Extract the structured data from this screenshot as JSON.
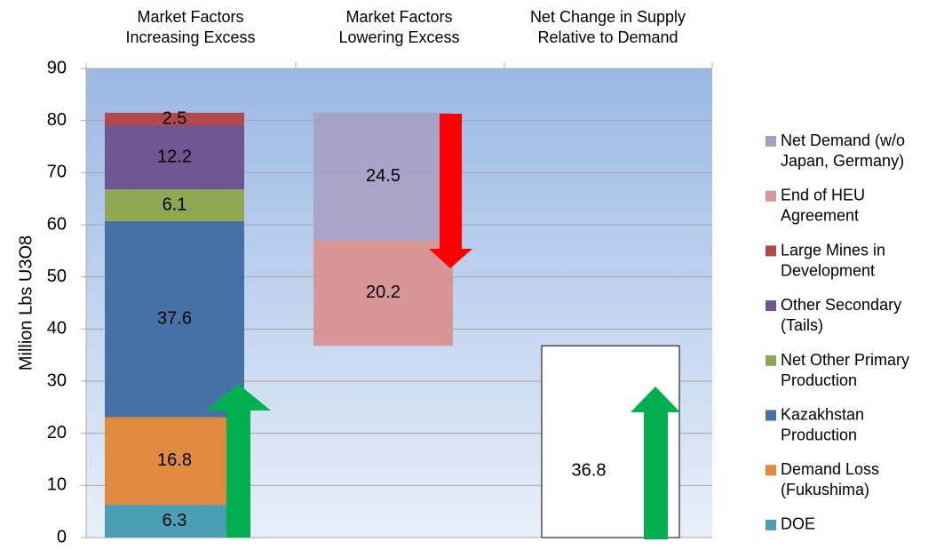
{
  "chart_data": {
    "type": "waterfall",
    "y_axis_label": "Million Lbs U3O8",
    "categories": [
      "Market Factors\nIncreasing Excess",
      "Market Factors\nLowering Excess",
      "Net Change in Supply\nRelative to Demand"
    ],
    "series": [
      {
        "name": "DOE",
        "color": "#4b9fb5",
        "values": [
          6.3,
          null,
          null
        ]
      },
      {
        "name": "Demand Loss\n(Fukushima)",
        "color": "#df8a3f",
        "values": [
          16.8,
          null,
          null
        ]
      },
      {
        "name": "Kazakhstan\nProduction",
        "color": "#4671a6",
        "values": [
          37.6,
          null,
          null
        ]
      },
      {
        "name": "Net Other Primary\nProduction",
        "color": "#8ca951",
        "values": [
          6.1,
          null,
          null
        ]
      },
      {
        "name": "Other Secondary\n(Tails)",
        "color": "#6e5592",
        "values": [
          12.2,
          null,
          null
        ]
      },
      {
        "name": "Large Mines in\nDevelopment",
        "color": "#b1494a",
        "values": [
          2.5,
          null,
          null
        ]
      },
      {
        "name": "End of HEU\nAgreement",
        "color": "#d79695",
        "values": [
          null,
          20.2,
          null
        ]
      },
      {
        "name": "Net Demand (w/o\nJapan, Germany)",
        "color": "#a89dc2",
        "values": [
          null,
          24.5,
          null
        ]
      }
    ],
    "net_values": [
      null,
      null,
      36.8
    ],
    "ylim": [
      0,
      90
    ],
    "yticks": [
      0,
      10,
      20,
      30,
      40,
      50,
      60,
      70,
      80,
      90
    ],
    "grid": true
  }
}
